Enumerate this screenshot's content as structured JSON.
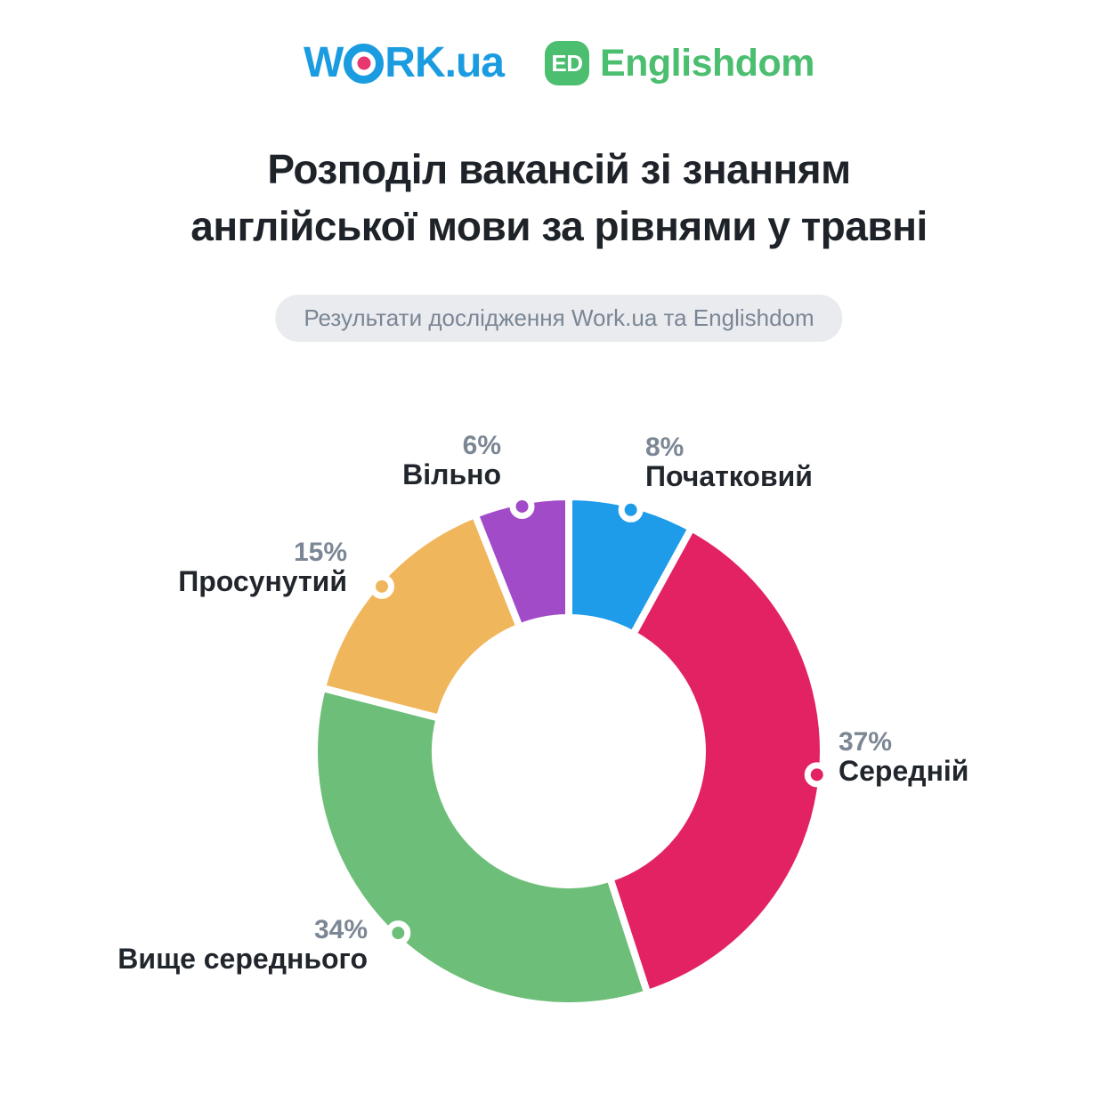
{
  "logos": {
    "work": {
      "pre": "W",
      "post": "RK.ua"
    },
    "englishdom": {
      "badge": "ED",
      "name": "Englishdom"
    }
  },
  "title": {
    "line1": "Розподіл вакансій зі знанням",
    "line2": "англійської мови за рівнями у травні"
  },
  "subtitle": "Результати дослідження Work.ua та Englishdom",
  "colors": {
    "work_blue": "#1B9CE0",
    "work_dot_pink": "#E8376F",
    "englishdom_green": "#4CBE70",
    "pct_gray": "#7C8795",
    "label_dark": "#21262C",
    "pill_bg": "#E9EBEF",
    "background": "#FFFFFF"
  },
  "chart_data": {
    "type": "pie",
    "variant": "donut",
    "title": "Розподіл вакансій зі знанням англійської мови за рівнями у травні",
    "unit": "%",
    "total": 100,
    "start_angle_deg": 0,
    "direction": "clockwise",
    "legend_position": "callouts-around-donut",
    "categories": [
      "Початковий",
      "Середній",
      "Вище середнього",
      "Просунутий",
      "Вільно"
    ],
    "values": [
      8,
      37,
      34,
      15,
      6
    ],
    "colors": [
      "#1E9CE9",
      "#E22263",
      "#6DBE78",
      "#F0B65C",
      "#A24BC8"
    ],
    "segments": [
      {
        "label": "Початковий",
        "pct_text": "8%",
        "value": 8,
        "color": "#1E9CE9"
      },
      {
        "label": "Середній",
        "pct_text": "37%",
        "value": 37,
        "color": "#E22263"
      },
      {
        "label": "Вище середнього",
        "pct_text": "34%",
        "value": 34,
        "color": "#6DBE78"
      },
      {
        "label": "Просунутий",
        "pct_text": "15%",
        "value": 15,
        "color": "#F0B65C"
      },
      {
        "label": "Вільно",
        "pct_text": "6%",
        "value": 6,
        "color": "#A24BC8"
      }
    ]
  }
}
